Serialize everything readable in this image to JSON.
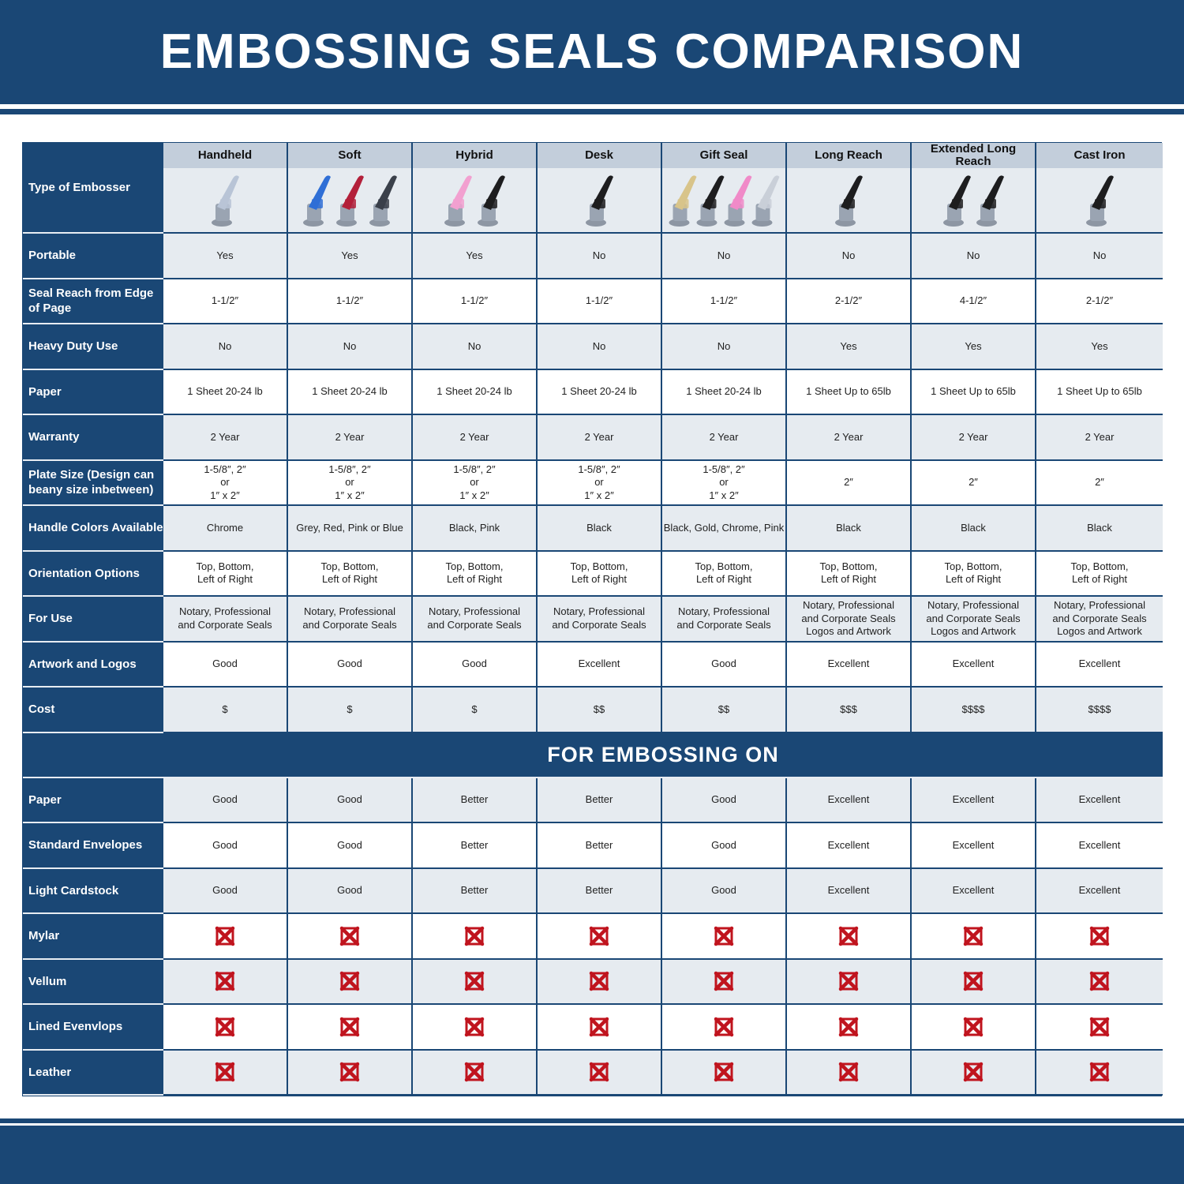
{
  "title": "EMBOSSING SEALS COMPARISON",
  "colors": {
    "brand_blue": "#1a4775",
    "header_grey": "#c3cedb",
    "row_grey": "#e6ebf0",
    "x_red": "#c0141e"
  },
  "type_label": "Type of Embosser",
  "products": [
    {
      "name": "Handheld",
      "image_colors": [
        "#b8c4d6"
      ]
    },
    {
      "name": "Soft",
      "image_colors": [
        "#2f6fd6",
        "#b3203a",
        "#3a404a"
      ]
    },
    {
      "name": "Hybrid",
      "image_colors": [
        "#f2a0d0",
        "#1d1d1f"
      ]
    },
    {
      "name": "Desk",
      "image_colors": [
        "#1d1d1f"
      ]
    },
    {
      "name": "Gift Seal",
      "image_colors": [
        "#d8c48a",
        "#1d1d1f",
        "#f08ac8",
        "#c9cfd8"
      ]
    },
    {
      "name": "Long Reach",
      "image_colors": [
        "#1d1d1f"
      ]
    },
    {
      "name": "Extended Long Reach",
      "image_colors": [
        "#1d1d1f",
        "#1d1d1f"
      ]
    },
    {
      "name": "Cast Iron",
      "image_colors": [
        "#1d1d1f"
      ]
    }
  ],
  "rows": [
    {
      "label": "Portable",
      "values": [
        "Yes",
        "Yes",
        "Yes",
        "No",
        "No",
        "No",
        "No",
        "No"
      ]
    },
    {
      "label": "Seal Reach from Edge\nof Page",
      "values": [
        "1-1/2″",
        "1-1/2″",
        "1-1/2″",
        "1-1/2″",
        "1-1/2″",
        "2-1/2″",
        "4-1/2″",
        "2-1/2″"
      ]
    },
    {
      "label": "Heavy Duty Use",
      "values": [
        "No",
        "No",
        "No",
        "No",
        "No",
        "Yes",
        "Yes",
        "Yes"
      ]
    },
    {
      "label": "Paper",
      "values": [
        "1 Sheet 20-24 lb",
        "1 Sheet 20-24 lb",
        "1 Sheet 20-24 lb",
        "1 Sheet 20-24 lb",
        "1 Sheet 20-24 lb",
        "1 Sheet Up to 65lb",
        "1 Sheet Up to 65lb",
        "1 Sheet Up to 65lb"
      ]
    },
    {
      "label": "Warranty",
      "values": [
        "2 Year",
        "2 Year",
        "2 Year",
        "2 Year",
        "2 Year",
        "2 Year",
        "2 Year",
        "2 Year"
      ]
    },
    {
      "label": "Plate Size (Design can\nbeany size inbetween)",
      "values": [
        "1-5/8″, 2″\nor\n1″ x 2″",
        "1-5/8″, 2″\nor\n1″ x 2″",
        "1-5/8″, 2″\nor\n1″ x 2″",
        "1-5/8″, 2″\nor\n1″ x 2″",
        "1-5/8″, 2″\nor\n1″ x 2″",
        "2″",
        "2″",
        "2″"
      ]
    },
    {
      "label": "Handle Colors Available",
      "values": [
        "Chrome",
        "Grey, Red, Pink or Blue",
        "Black, Pink",
        "Black",
        "Black, Gold, Chrome, Pink",
        "Black",
        "Black",
        "Black"
      ]
    },
    {
      "label": "Orientation Options",
      "values": [
        "Top, Bottom,\nLeft of Right",
        "Top, Bottom,\nLeft of Right",
        "Top, Bottom,\nLeft of Right",
        "Top, Bottom,\nLeft of Right",
        "Top, Bottom,\nLeft of Right",
        "Top, Bottom,\nLeft of Right",
        "Top, Bottom,\nLeft of Right",
        "Top, Bottom,\nLeft of Right"
      ]
    },
    {
      "label": "For Use",
      "values": [
        "Notary, Professional\nand Corporate Seals",
        "Notary, Professional\nand Corporate Seals",
        "Notary, Professional\nand Corporate Seals",
        "Notary, Professional\nand Corporate Seals",
        "Notary, Professional\nand Corporate Seals",
        "Notary, Professional\nand Corporate Seals\nLogos and Artwork",
        "Notary, Professional\nand Corporate Seals\nLogos and Artwork",
        "Notary, Professional\nand Corporate Seals\nLogos and Artwork"
      ]
    },
    {
      "label": "Artwork and Logos",
      "values": [
        "Good",
        "Good",
        "Good",
        "Excellent",
        "Good",
        "Excellent",
        "Excellent",
        "Excellent"
      ]
    },
    {
      "label": "Cost",
      "values": [
        "$",
        "$",
        "$",
        "$$",
        "$$",
        "$$$",
        "$$$$",
        "$$$$"
      ]
    }
  ],
  "section_title": "FOR EMBOSSING ON",
  "embossing_rows": [
    {
      "label": "Paper",
      "values": [
        "Good",
        "Good",
        "Better",
        "Better",
        "Good",
        "Excellent",
        "Excellent",
        "Excellent"
      ]
    },
    {
      "label": "Standard Envelopes",
      "values": [
        "Good",
        "Good",
        "Better",
        "Better",
        "Good",
        "Excellent",
        "Excellent",
        "Excellent"
      ]
    },
    {
      "label": "Light Cardstock",
      "values": [
        "Good",
        "Good",
        "Better",
        "Better",
        "Good",
        "Excellent",
        "Excellent",
        "Excellent"
      ]
    },
    {
      "label": "Mylar",
      "mark": "red-x-icon"
    },
    {
      "label": "Vellum",
      "mark": "red-x-icon"
    },
    {
      "label": "Lined Evenvlops",
      "mark": "red-x-icon"
    },
    {
      "label": "Leather",
      "mark": "red-x-icon"
    }
  ]
}
